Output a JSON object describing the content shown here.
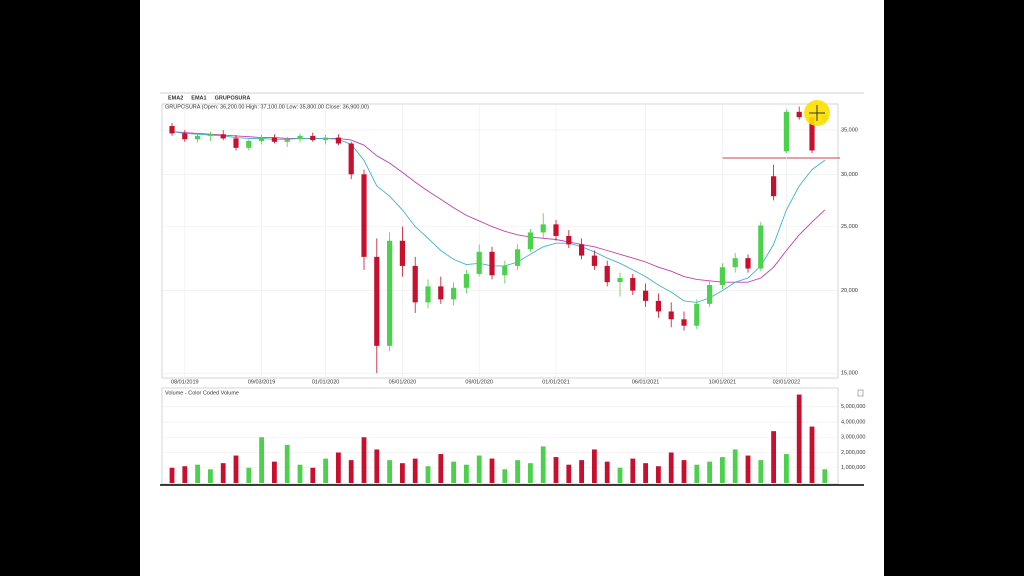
{
  "chart_data": [
    {
      "type": "candlestick",
      "name": "GRUPOSURA",
      "header": "GRUPOSURA (Open: 36,200.00 High: 37,100.00 Low: 35,800.00 Close: 36,900.00)",
      "categories": [
        null,
        "08/01/2019",
        null,
        null,
        null,
        null,
        null,
        "09/03/2019",
        null,
        null,
        null,
        null,
        "01/01/2020",
        null,
        null,
        null,
        null,
        null,
        "05/01/2020",
        null,
        null,
        null,
        null,
        null,
        "09/01/2020",
        null,
        null,
        null,
        null,
        null,
        "01/01/2021",
        null,
        null,
        null,
        null,
        null,
        null,
        "06/01/2021",
        null,
        null,
        null,
        null,
        null,
        "10/01/2021",
        null,
        null,
        null,
        null,
        "02/01/2022",
        null,
        null,
        null
      ],
      "open": [
        35500,
        34600,
        33900,
        34300,
        34500,
        34000,
        32900,
        33700,
        34100,
        33600,
        33900,
        34300,
        33800,
        34100,
        33400,
        30000,
        22500,
        16500,
        23800,
        21800,
        19200,
        20300,
        19400,
        20200,
        21200,
        22900,
        21100,
        21800,
        23100,
        24500,
        25200,
        24200,
        23500,
        22600,
        21800,
        20600,
        20900,
        20000,
        19300,
        18600,
        18100,
        17700,
        19100,
        20400,
        21700,
        22400,
        21600,
        29800,
        32500,
        37300,
        36600,
        36200
      ],
      "high": [
        35900,
        35000,
        34600,
        34800,
        35000,
        34400,
        33900,
        34400,
        34500,
        34200,
        34600,
        34700,
        34400,
        34500,
        33600,
        30500,
        24000,
        24500,
        25000,
        22500,
        20800,
        21000,
        20600,
        21500,
        23500,
        23300,
        22200,
        23500,
        24800,
        26200,
        25600,
        24700,
        24000,
        23000,
        22200,
        21300,
        21200,
        20500,
        19800,
        19200,
        18600,
        19400,
        20700,
        22000,
        22800,
        22700,
        25400,
        31000,
        37600,
        38000,
        36800,
        37100
      ],
      "low": [
        34300,
        33600,
        33500,
        33700,
        33800,
        32600,
        32600,
        33300,
        33400,
        33000,
        33500,
        33600,
        33300,
        33200,
        29500,
        21500,
        15000,
        16200,
        21000,
        18500,
        18800,
        19100,
        19000,
        19800,
        21000,
        20800,
        20500,
        21500,
        22900,
        24000,
        23800,
        23200,
        22300,
        21500,
        20300,
        19600,
        19700,
        18900,
        18200,
        17600,
        17400,
        17500,
        18900,
        20100,
        21300,
        21300,
        21400,
        27400,
        32300,
        36300,
        32300,
        35800
      ],
      "close": [
        34600,
        33900,
        34300,
        34500,
        34000,
        32900,
        33700,
        34100,
        33600,
        33900,
        34300,
        33800,
        34100,
        33400,
        30000,
        22500,
        16500,
        23800,
        21800,
        19200,
        20300,
        19400,
        20200,
        21200,
        22900,
        21100,
        21800,
        23100,
        24500,
        25200,
        24200,
        23500,
        22600,
        21800,
        20600,
        20900,
        20000,
        19300,
        18600,
        18100,
        17700,
        19100,
        20400,
        21700,
        22400,
        21600,
        25100,
        27800,
        37300,
        36600,
        32600,
        36900
      ],
      "up_color": "#4cd14c",
      "down_color": "#c8102e",
      "series": [
        {
          "name": "EMA2",
          "color": "#c040b0",
          "values": [
            34800,
            34700,
            34600,
            34500,
            34400,
            34300,
            34200,
            34100,
            34100,
            34000,
            34000,
            34000,
            34000,
            34000,
            33800,
            33200,
            32000,
            31200,
            30200,
            29200,
            28300,
            27500,
            26700,
            26000,
            25500,
            25000,
            24600,
            24300,
            24100,
            24000,
            23900,
            23700,
            23500,
            23300,
            23000,
            22700,
            22400,
            22100,
            21700,
            21400,
            21000,
            20800,
            20700,
            20600,
            20600,
            20600,
            20900,
            21700,
            23000,
            24300,
            25400,
            26500
          ]
        },
        {
          "name": "EMA1",
          "color": "#3cb4d0",
          "values": [
            34800,
            34600,
            34500,
            34400,
            34300,
            34100,
            34000,
            34000,
            33900,
            33900,
            34000,
            34000,
            34000,
            33900,
            33300,
            31500,
            28800,
            27800,
            26500,
            25000,
            24000,
            23000,
            22300,
            21900,
            22000,
            21800,
            21800,
            22100,
            22700,
            23300,
            23600,
            23600,
            23300,
            22900,
            22400,
            22000,
            21500,
            21000,
            20400,
            19900,
            19300,
            19200,
            19500,
            20000,
            20600,
            20900,
            21800,
            23500,
            26500,
            28800,
            30500,
            31500
          ]
        }
      ],
      "log_scale": true,
      "grid": true,
      "ylim": [
        14750,
        38200
      ],
      "yticks": [
        {
          "value": 15000,
          "label": "15,000"
        },
        {
          "value": 20000,
          "label": "20,000"
        },
        {
          "value": 25000,
          "label": "25,000"
        },
        {
          "value": 30000,
          "label": "30,000"
        },
        {
          "value": 35000,
          "label": "35,000"
        }
      ]
    },
    {
      "type": "bar",
      "title": "Volume - Color Coded Volume",
      "values": [
        1000000,
        1100000,
        1200000,
        900000,
        1300000,
        1800000,
        1000000,
        3000000,
        1400000,
        2500000,
        1200000,
        1000000,
        1600000,
        2000000,
        1500000,
        3000000,
        2200000,
        1500000,
        1300000,
        1600000,
        1100000,
        1900000,
        1400000,
        1200000,
        1800000,
        1600000,
        900000,
        1500000,
        1300000,
        2400000,
        1700000,
        1200000,
        1500000,
        2200000,
        1400000,
        1000000,
        1600000,
        1300000,
        1100000,
        2000000,
        1500000,
        1200000,
        1400000,
        1700000,
        2200000,
        1800000,
        1500000,
        3400000,
        1900000,
        5800000,
        3700000,
        900000
      ],
      "ylim": [
        0,
        6100000
      ],
      "yticks": [
        {
          "value": 1000000,
          "label": "1,000,000"
        },
        {
          "value": 2000000,
          "label": "2,000,000"
        },
        {
          "value": 3000000,
          "label": "3,000,000"
        },
        {
          "value": 4000000,
          "label": "4,000,000"
        },
        {
          "value": 5000000,
          "label": "5,000,000"
        }
      ],
      "grid": true
    }
  ]
}
